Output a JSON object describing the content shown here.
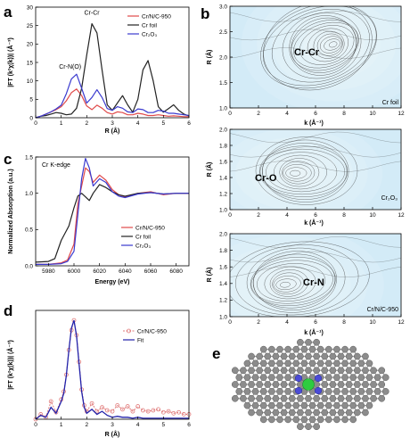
{
  "panel_labels": [
    "a",
    "b",
    "c",
    "d",
    "e"
  ],
  "chart_data": [
    {
      "id": "a",
      "type": "line",
      "xlabel": "R (Å)",
      "ylabel": "|FT (k²χ(k))| (Å⁻³)",
      "xlim": [
        0,
        6
      ],
      "ylim": [
        0,
        30
      ],
      "xticks": [
        0,
        1,
        2,
        3,
        4,
        5,
        6
      ],
      "yticks": [
        0,
        5,
        10,
        15,
        20,
        25,
        30
      ],
      "legend_position": "top-right",
      "annotations": [
        {
          "text": "Cr-Cr",
          "x": 2.2,
          "y": 28
        },
        {
          "text": "Cr-N(O)",
          "x": 1.35,
          "y": 13.3
        }
      ],
      "series": [
        {
          "name": "Cr/N/C-950",
          "color": "#e04a4a",
          "x": [
            0,
            0.2,
            0.4,
            0.6,
            0.8,
            1.0,
            1.2,
            1.4,
            1.6,
            1.8,
            2.0,
            2.2,
            2.4,
            2.6,
            2.8,
            3.0,
            3.2,
            3.4,
            3.6,
            3.8,
            4.0,
            4.2,
            4.4,
            4.6,
            4.8,
            5.0,
            5.2,
            5.4,
            5.6,
            5.8,
            6.0
          ],
          "y": [
            0,
            0.4,
            1.0,
            1.6,
            2.2,
            3.0,
            4.6,
            6.8,
            7.8,
            6.0,
            3.2,
            2.2,
            3.4,
            2.6,
            1.4,
            1.0,
            1.6,
            1.4,
            0.8,
            0.8,
            1.2,
            1.0,
            0.6,
            0.6,
            0.8,
            0.6,
            0.4,
            0.5,
            0.4,
            0.3,
            0.3
          ]
        },
        {
          "name": "Cr foil",
          "color": "#222222",
          "x": [
            0,
            0.2,
            0.4,
            0.6,
            0.8,
            1.0,
            1.2,
            1.4,
            1.6,
            1.8,
            2.0,
            2.2,
            2.4,
            2.6,
            2.8,
            3.0,
            3.2,
            3.4,
            3.6,
            3.8,
            4.0,
            4.2,
            4.4,
            4.6,
            4.8,
            5.0,
            5.2,
            5.4,
            5.6,
            5.8,
            6.0
          ],
          "y": [
            0,
            0.4,
            0.6,
            1.0,
            1.4,
            1.2,
            0.8,
            1.0,
            2.6,
            8.0,
            17.0,
            25.5,
            23.0,
            13.0,
            3.5,
            2.0,
            4.0,
            6.0,
            3.5,
            1.5,
            5.0,
            13.0,
            15.5,
            10.0,
            3.0,
            1.5,
            2.5,
            3.5,
            2.0,
            1.0,
            0.5
          ]
        },
        {
          "name": "Cr₂O₃",
          "color": "#3a3acf",
          "x": [
            0,
            0.2,
            0.4,
            0.6,
            0.8,
            1.0,
            1.2,
            1.4,
            1.6,
            1.8,
            2.0,
            2.2,
            2.4,
            2.6,
            2.8,
            3.0,
            3.2,
            3.4,
            3.6,
            3.8,
            4.0,
            4.2,
            4.4,
            4.6,
            4.8,
            5.0,
            5.2,
            5.4,
            5.6,
            5.8,
            6.0
          ],
          "y": [
            0,
            0.4,
            1.0,
            1.6,
            2.4,
            3.4,
            6.5,
            10.5,
            11.8,
            8.0,
            4.0,
            5.5,
            7.6,
            5.5,
            2.5,
            2.0,
            3.0,
            2.6,
            1.6,
            1.4,
            2.4,
            2.2,
            1.4,
            1.4,
            2.0,
            1.8,
            1.2,
            1.2,
            1.0,
            0.8,
            0.6
          ]
        }
      ]
    },
    {
      "id": "b1",
      "type": "contour",
      "xlabel": "k (Å⁻¹)",
      "ylabel": "R (Å)",
      "xlim": [
        0,
        12
      ],
      "ylim": [
        1.0,
        3.0
      ],
      "xticks": [
        0,
        2,
        4,
        6,
        8,
        10,
        12
      ],
      "yticks": [
        1.0,
        1.5,
        2.0,
        2.5,
        3.0
      ],
      "peak_label": "Cr-Cr",
      "peak": {
        "k": 7.3,
        "R": 2.25
      },
      "sample_label": "Cr foil"
    },
    {
      "id": "b2",
      "type": "contour",
      "xlabel": "k (Å⁻¹)",
      "ylabel": "R (Å)",
      "xlim": [
        0,
        12
      ],
      "ylim": [
        1.0,
        2.0
      ],
      "xticks": [
        0,
        2,
        4,
        6,
        8,
        10,
        12
      ],
      "yticks": [
        1.0,
        1.2,
        1.4,
        1.6,
        1.8,
        2.0
      ],
      "peak_label": "Cr-O",
      "peak": {
        "k": 4.5,
        "R": 1.45
      },
      "sample_label": "Cr₂O₃"
    },
    {
      "id": "b3",
      "type": "contour",
      "xlabel": "k (Å⁻¹)",
      "ylabel": "R (Å)",
      "xlim": [
        0,
        12
      ],
      "ylim": [
        1.0,
        2.0
      ],
      "xticks": [
        0,
        2,
        4,
        6,
        8,
        10,
        12
      ],
      "yticks": [
        1.0,
        1.2,
        1.4,
        1.6,
        1.8,
        2.0
      ],
      "peak_label": "Cr-N",
      "peak": {
        "k": 3.8,
        "R": 1.38
      },
      "sample_label": "Cr/N/C-950"
    },
    {
      "id": "c",
      "type": "line",
      "xlabel": "Energy (eV)",
      "ylabel": "Normalized Absorption (a.u.)",
      "xlim": [
        5970,
        6090
      ],
      "ylim": [
        0,
        1.5
      ],
      "xticks": [
        5980,
        6000,
        6020,
        6040,
        6060,
        6080
      ],
      "yticks": [
        0.0,
        0.5,
        1.0,
        1.5
      ],
      "edge_label": "Cr K-edge",
      "legend_position": "bottom-right",
      "series": [
        {
          "name": "Cr/N/C-950",
          "color": "#e04a4a",
          "x": [
            5970,
            5980,
            5990,
            5995,
            6000,
            6003,
            6006,
            6009,
            6012,
            6015,
            6020,
            6025,
            6030,
            6035,
            6040,
            6050,
            6060,
            6070,
            6080,
            6090
          ],
          "y": [
            0.02,
            0.02,
            0.04,
            0.08,
            0.3,
            0.85,
            1.1,
            1.35,
            1.3,
            1.15,
            1.25,
            1.18,
            1.05,
            0.98,
            0.95,
            1.0,
            1.02,
            0.98,
            1.0,
            1.0
          ]
        },
        {
          "name": "Cr foil",
          "color": "#222222",
          "x": [
            5970,
            5980,
            5985,
            5990,
            5993,
            5996,
            6000,
            6003,
            6006,
            6009,
            6012,
            6015,
            6020,
            6025,
            6030,
            6035,
            6040,
            6050,
            6060,
            6070,
            6080,
            6090
          ],
          "y": [
            0.05,
            0.06,
            0.1,
            0.35,
            0.45,
            0.55,
            0.8,
            0.96,
            1.0,
            0.95,
            0.9,
            1.0,
            1.12,
            1.08,
            1.02,
            0.98,
            0.96,
            1.0,
            1.01,
            0.99,
            1.0,
            1.0
          ]
        },
        {
          "name": "Cr₂O₃",
          "color": "#3a3acf",
          "x": [
            5970,
            5980,
            5990,
            5995,
            6000,
            6003,
            6006,
            6009,
            6012,
            6015,
            6020,
            6025,
            6030,
            6035,
            6040,
            6050,
            6060,
            6070,
            6080,
            6090
          ],
          "y": [
            0.02,
            0.02,
            0.03,
            0.06,
            0.2,
            0.7,
            1.2,
            1.48,
            1.35,
            1.1,
            1.2,
            1.15,
            1.02,
            0.96,
            0.94,
            0.99,
            1.01,
            0.99,
            1.0,
            1.0
          ]
        }
      ]
    },
    {
      "id": "d",
      "type": "line",
      "xlabel": "R (Å)",
      "ylabel": "|FT (k²χ(k))| (Å⁻³)",
      "xlim": [
        0,
        6
      ],
      "xticks": [
        0,
        1,
        2,
        3,
        4,
        5,
        6
      ],
      "legend_position": "top-right",
      "series": [
        {
          "name": "Cr/N/C-950",
          "color": "#e07a7a",
          "marker": "circle",
          "x": [
            0,
            0.2,
            0.4,
            0.6,
            0.8,
            1.0,
            1.1,
            1.2,
            1.3,
            1.4,
            1.5,
            1.6,
            1.7,
            1.8,
            1.9,
            2.0,
            2.2,
            2.4,
            2.6,
            2.8,
            3.0,
            3.2,
            3.4,
            3.6,
            3.8,
            4.0,
            4.2,
            4.4,
            4.6,
            4.8,
            5.0,
            5.2,
            5.4,
            5.6,
            5.8,
            6.0
          ],
          "y": [
            0.0,
            0.05,
            0.02,
            0.18,
            0.07,
            0.2,
            0.28,
            0.45,
            0.7,
            0.9,
            1.0,
            0.85,
            0.58,
            0.3,
            0.14,
            0.08,
            0.16,
            0.08,
            0.12,
            0.09,
            0.08,
            0.14,
            0.1,
            0.13,
            0.08,
            0.13,
            0.09,
            0.08,
            0.09,
            0.1,
            0.07,
            0.08,
            0.06,
            0.07,
            0.05,
            0.05
          ]
        },
        {
          "name": "Fit",
          "color": "#2222aa",
          "marker": "none",
          "x": [
            0,
            0.2,
            0.4,
            0.6,
            0.8,
            1.0,
            1.1,
            1.2,
            1.3,
            1.4,
            1.5,
            1.6,
            1.7,
            1.8,
            1.9,
            2.0,
            2.2,
            2.4,
            2.6,
            2.8,
            3.0,
            3.2,
            3.4,
            3.6,
            3.8,
            4.0,
            4.2,
            4.4,
            4.6,
            4.8,
            5.0,
            5.2,
            5.4,
            5.6,
            5.8,
            6.0
          ],
          "y": [
            0.0,
            0.04,
            0.02,
            0.12,
            0.06,
            0.18,
            0.26,
            0.44,
            0.7,
            0.92,
            1.0,
            0.84,
            0.56,
            0.28,
            0.12,
            0.06,
            0.1,
            0.05,
            0.08,
            0.04,
            0.02,
            0.03,
            0.02,
            0.02,
            0.01,
            0.02,
            0.01,
            0.01,
            0.01,
            0.01,
            0.01,
            0.01,
            0.01,
            0.01,
            0.01,
            0.01
          ]
        }
      ]
    }
  ]
}
